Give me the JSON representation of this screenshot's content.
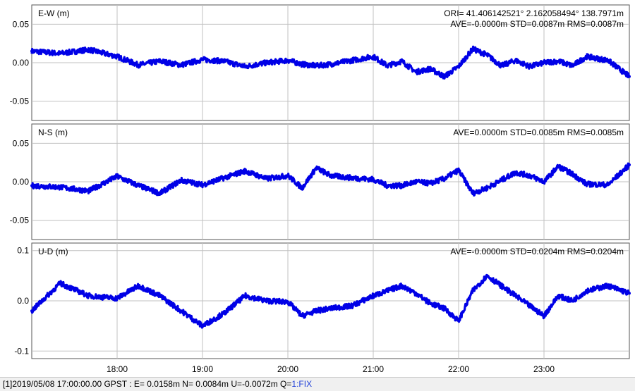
{
  "chart_data": [
    {
      "type": "scatter",
      "ylabel": "E-W (m)",
      "header_line1": "ORI= 41.406142521°   2.162058494° 138.7971m",
      "stats": "AVE=-0.0000m STD=0.0087m RMS=0.0087m",
      "ylim": [
        -0.075,
        0.075
      ],
      "yticks": [
        0.05,
        0.0,
        -0.05
      ],
      "yticklabels": [
        "0.05",
        "0.00",
        "-0.05"
      ],
      "xlim": [
        "17:00",
        "24:00"
      ],
      "xticks": [
        "18:00",
        "19:00",
        "20:00",
        "21:00",
        "22:00",
        "23:00"
      ],
      "grid": true,
      "series": [
        {
          "color": "#0000e6",
          "x": [
            "17:00",
            "17:20",
            "17:40",
            "18:00",
            "18:15",
            "18:30",
            "18:45",
            "19:00",
            "19:15",
            "19:30",
            "19:45",
            "20:00",
            "20:10",
            "20:20",
            "20:30",
            "20:45",
            "21:00",
            "21:10",
            "21:20",
            "21:30",
            "21:40",
            "21:50",
            "22:00",
            "22:10",
            "22:20",
            "22:30",
            "22:40",
            "22:50",
            "23:00",
            "23:10",
            "23:20",
            "23:30",
            "23:45",
            "24:00"
          ],
          "values": [
            0.015,
            0.012,
            0.017,
            0.008,
            -0.003,
            0.002,
            -0.003,
            0.004,
            0.002,
            -0.005,
            0.0,
            0.003,
            -0.002,
            -0.004,
            -0.002,
            0.003,
            0.008,
            -0.004,
            0.002,
            -0.012,
            -0.008,
            -0.018,
            -0.005,
            0.018,
            0.01,
            -0.004,
            0.003,
            -0.005,
            0.0,
            0.002,
            -0.004,
            0.008,
            0.003,
            -0.018
          ]
        }
      ]
    },
    {
      "type": "scatter",
      "ylabel": "N-S (m)",
      "stats": "AVE=0.0000m STD=0.0085m RMS=0.0085m",
      "ylim": [
        -0.075,
        0.075
      ],
      "yticks": [
        0.05,
        0.0,
        -0.05
      ],
      "yticklabels": [
        "0.05",
        "0.00",
        "-0.05"
      ],
      "xlim": [
        "17:00",
        "24:00"
      ],
      "xticks": [
        "18:00",
        "19:00",
        "20:00",
        "21:00",
        "22:00",
        "23:00"
      ],
      "grid": true,
      "series": [
        {
          "color": "#0000e6",
          "x": [
            "17:00",
            "17:20",
            "17:40",
            "18:00",
            "18:15",
            "18:30",
            "18:45",
            "19:00",
            "19:15",
            "19:30",
            "19:45",
            "20:00",
            "20:10",
            "20:20",
            "20:30",
            "20:45",
            "21:00",
            "21:10",
            "21:20",
            "21:30",
            "21:40",
            "21:50",
            "22:00",
            "22:10",
            "22:20",
            "22:30",
            "22:40",
            "22:50",
            "23:00",
            "23:10",
            "23:20",
            "23:30",
            "23:45",
            "24:00"
          ],
          "values": [
            -0.005,
            -0.007,
            -0.012,
            0.007,
            -0.005,
            -0.015,
            0.002,
            -0.004,
            0.005,
            0.014,
            0.004,
            0.008,
            -0.008,
            0.018,
            0.008,
            0.005,
            0.003,
            -0.005,
            -0.005,
            0.0,
            -0.002,
            0.004,
            0.015,
            -0.015,
            -0.008,
            0.002,
            0.012,
            0.008,
            0.0,
            0.02,
            0.01,
            -0.003,
            -0.004,
            0.022
          ]
        }
      ]
    },
    {
      "type": "scatter",
      "ylabel": "U-D (m)",
      "stats": "AVE=-0.0000m STD=0.0204m RMS=0.0204m",
      "ylim": [
        -0.115,
        0.115
      ],
      "yticks": [
        0.1,
        0.0,
        -0.1
      ],
      "yticklabels": [
        "0.1",
        "0.0",
        "-0.1"
      ],
      "xlim": [
        "17:00",
        "24:00"
      ],
      "xticks": [
        "18:00",
        "19:00",
        "20:00",
        "21:00",
        "22:00",
        "23:00"
      ],
      "grid": true,
      "series": [
        {
          "color": "#0000e6",
          "x": [
            "17:00",
            "17:20",
            "17:40",
            "18:00",
            "18:15",
            "18:30",
            "18:45",
            "19:00",
            "19:15",
            "19:30",
            "19:45",
            "20:00",
            "20:10",
            "20:20",
            "20:30",
            "20:45",
            "21:00",
            "21:10",
            "21:20",
            "21:30",
            "21:40",
            "21:50",
            "22:00",
            "22:10",
            "22:20",
            "22:30",
            "22:40",
            "22:50",
            "23:00",
            "23:10",
            "23:20",
            "23:30",
            "23:45",
            "24:00"
          ],
          "values": [
            -0.02,
            0.035,
            0.01,
            0.005,
            0.03,
            0.01,
            -0.02,
            -0.05,
            -0.025,
            0.01,
            0.0,
            -0.002,
            -0.03,
            -0.02,
            -0.015,
            -0.01,
            0.01,
            0.02,
            0.03,
            0.015,
            -0.005,
            -0.015,
            -0.04,
            0.02,
            0.05,
            0.03,
            0.01,
            -0.01,
            -0.03,
            0.01,
            0.0,
            0.02,
            0.03,
            0.015
          ]
        }
      ]
    }
  ],
  "status_bar": {
    "text": "[1]2019/05/08 17:00:00.00 GPST : E= 0.0158m N= 0.0084m U=-0.0072m Q=",
    "quality": "1:FIX"
  }
}
